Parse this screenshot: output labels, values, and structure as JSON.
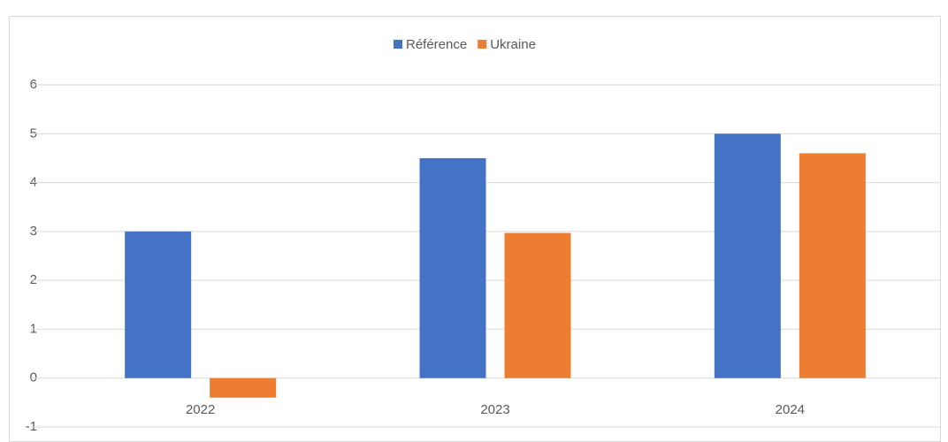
{
  "chart_data": {
    "type": "bar",
    "categories": [
      "2022",
      "2023",
      "2024"
    ],
    "series": [
      {
        "name": "Référence",
        "color": "#4472c4",
        "values": [
          3.0,
          4.5,
          5.0
        ]
      },
      {
        "name": "Ukraine",
        "color": "#ed7d31",
        "values": [
          -0.4,
          2.97,
          4.6
        ]
      }
    ],
    "ylim": [
      -1,
      6
    ],
    "yticks": [
      -1,
      0,
      1,
      2,
      3,
      4,
      5,
      6
    ],
    "grid": true,
    "legend": "top"
  }
}
